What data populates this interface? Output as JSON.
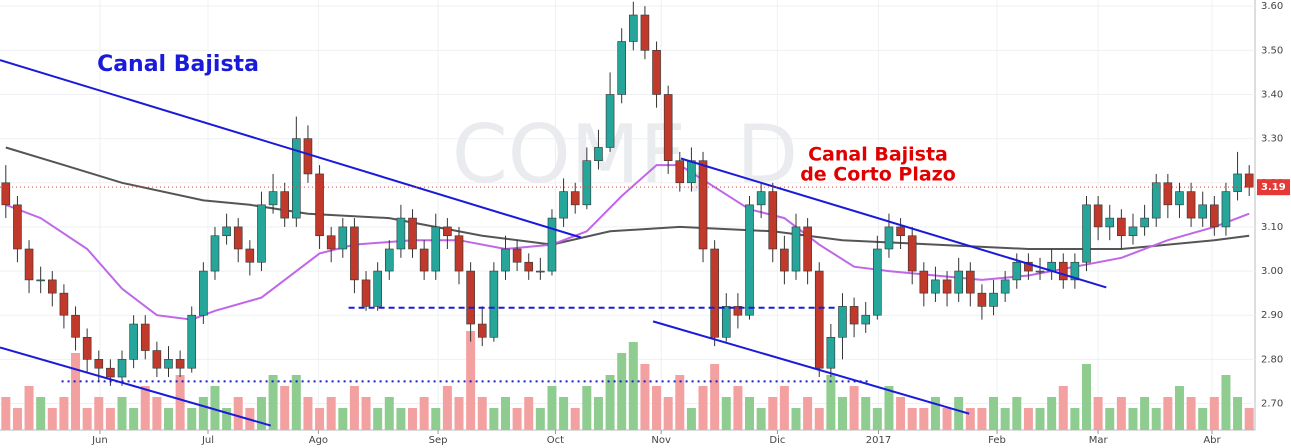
{
  "chart_data": {
    "type": "candlestick",
    "watermark": "COMF, D",
    "ylim": [
      2.64,
      3.614
    ],
    "xlim": [
      -0.5,
      107.5
    ],
    "yticks": [
      {
        "value": 2.7,
        "label": "2.70"
      },
      {
        "value": 2.8,
        "label": "2.80"
      },
      {
        "value": 2.9,
        "label": "2.90"
      },
      {
        "value": 3.0,
        "label": "3.00"
      },
      {
        "value": 3.1,
        "label": "3.10"
      },
      {
        "value": 3.2,
        "label": "3.20"
      },
      {
        "value": 3.3,
        "label": "3.30"
      },
      {
        "value": 3.4,
        "label": "3.40"
      },
      {
        "value": 3.5,
        "label": "3.50"
      },
      {
        "value": 3.6,
        "label": "3.60"
      }
    ],
    "xticks": [
      {
        "value": 8.1,
        "label": "Jun"
      },
      {
        "value": 17.4,
        "label": "Jul"
      },
      {
        "value": 26.9,
        "label": "Ago"
      },
      {
        "value": 37.2,
        "label": "Sep"
      },
      {
        "value": 47.3,
        "label": "Oct"
      },
      {
        "value": 56.4,
        "label": "Nov"
      },
      {
        "value": 66.4,
        "label": "Dic"
      },
      {
        "value": 75.1,
        "label": "2017"
      },
      {
        "value": 85.3,
        "label": "Feb"
      },
      {
        "value": 94.0,
        "label": "Mar"
      },
      {
        "value": 103.8,
        "label": "Abr"
      }
    ],
    "grid": true,
    "up_color": "#26a69a",
    "down_color": "#c0392b",
    "up_volume_color": "#8fcc8f",
    "down_volume_color": "#f2a0a0",
    "open": [
      3.2,
      3.15,
      3.05,
      2.98,
      2.98,
      2.95,
      2.9,
      2.85,
      2.8,
      2.78,
      2.76,
      2.8,
      2.88,
      2.82,
      2.78,
      2.8,
      2.78,
      2.9,
      3.0,
      3.08,
      3.1,
      3.05,
      3.02,
      3.15,
      3.18,
      3.12,
      3.3,
      3.22,
      3.08,
      3.05,
      3.1,
      2.98,
      2.92,
      3.0,
      3.05,
      3.12,
      3.05,
      3.0,
      3.1,
      3.08,
      3.0,
      2.88,
      2.85,
      3.0,
      3.05,
      3.02,
      3.0,
      3.0,
      3.12,
      3.18,
      3.15,
      3.25,
      3.28,
      3.4,
      3.52,
      3.58,
      3.5,
      3.4,
      3.25,
      3.2,
      3.25,
      3.05,
      2.85,
      2.92,
      2.9,
      3.15,
      3.18,
      3.05,
      3.0,
      3.1,
      3.0,
      2.78,
      2.85,
      2.92,
      2.88,
      2.9,
      3.05,
      3.1,
      3.08,
      3.0,
      2.95,
      2.98,
      2.95,
      3.0,
      2.95,
      2.92,
      2.95,
      2.98,
      3.02,
      3.0,
      3.0,
      3.02,
      2.98,
      3.02,
      3.15,
      3.1,
      3.12,
      3.08,
      3.1,
      3.12,
      3.2,
      3.15,
      3.18,
      3.12,
      3.15,
      3.1,
      3.18,
      3.22
    ],
    "high": [
      3.24,
      3.17,
      3.07,
      3.01,
      3.0,
      2.97,
      2.92,
      2.87,
      2.82,
      2.8,
      2.82,
      2.9,
      2.9,
      2.84,
      2.83,
      2.82,
      2.92,
      3.02,
      3.1,
      3.13,
      3.12,
      3.07,
      3.18,
      3.22,
      3.2,
      3.35,
      3.33,
      3.24,
      3.1,
      3.12,
      3.12,
      3.0,
      3.02,
      3.07,
      3.15,
      3.14,
      3.07,
      3.13,
      3.12,
      3.1,
      3.02,
      2.92,
      3.02,
      3.08,
      3.07,
      3.04,
      3.03,
      3.14,
      3.21,
      3.2,
      3.28,
      3.32,
      3.45,
      3.55,
      3.61,
      3.6,
      3.52,
      3.42,
      3.27,
      3.28,
      3.27,
      3.07,
      2.95,
      2.95,
      3.17,
      3.2,
      3.2,
      3.08,
      3.13,
      3.12,
      3.02,
      2.88,
      2.95,
      2.94,
      2.93,
      3.08,
      3.13,
      3.12,
      3.1,
      3.02,
      3.01,
      3.0,
      3.03,
      3.02,
      2.97,
      2.98,
      3.0,
      3.04,
      3.04,
      3.03,
      3.05,
      3.04,
      3.04,
      3.17,
      3.17,
      3.15,
      3.14,
      3.13,
      3.15,
      3.22,
      3.22,
      3.2,
      3.2,
      3.18,
      3.17,
      3.2,
      3.27,
      3.24
    ],
    "low": [
      3.12,
      3.02,
      2.95,
      2.95,
      2.92,
      2.87,
      2.82,
      2.77,
      2.75,
      2.74,
      2.74,
      2.78,
      2.8,
      2.76,
      2.76,
      2.76,
      2.77,
      2.88,
      2.98,
      3.06,
      3.02,
      2.99,
      3.0,
      3.13,
      3.1,
      3.1,
      3.2,
      3.05,
      3.02,
      3.03,
      2.95,
      2.91,
      2.91,
      2.98,
      3.03,
      3.03,
      2.98,
      2.98,
      3.05,
      2.97,
      2.84,
      2.83,
      2.84,
      2.98,
      3.0,
      2.98,
      2.98,
      2.99,
      3.1,
      3.13,
      3.14,
      3.23,
      3.27,
      3.38,
      3.5,
      3.48,
      3.37,
      3.22,
      3.18,
      3.18,
      3.02,
      2.83,
      2.84,
      2.87,
      2.89,
      3.12,
      3.02,
      2.97,
      2.98,
      2.97,
      2.76,
      2.76,
      2.8,
      2.85,
      2.86,
      2.89,
      3.03,
      3.05,
      2.97,
      2.92,
      2.93,
      2.92,
      2.93,
      2.92,
      2.89,
      2.9,
      2.93,
      2.96,
      2.98,
      2.98,
      2.98,
      2.96,
      2.96,
      3.0,
      3.07,
      3.07,
      3.05,
      3.06,
      3.08,
      3.1,
      3.12,
      3.12,
      3.1,
      3.1,
      3.08,
      3.08,
      3.16,
      3.17
    ],
    "close": [
      3.15,
      3.05,
      2.98,
      2.98,
      2.95,
      2.9,
      2.85,
      2.8,
      2.78,
      2.76,
      2.8,
      2.88,
      2.82,
      2.78,
      2.8,
      2.78,
      2.9,
      3.0,
      3.08,
      3.1,
      3.05,
      3.02,
      3.15,
      3.18,
      3.12,
      3.3,
      3.22,
      3.08,
      3.05,
      3.1,
      2.98,
      2.92,
      3.0,
      3.05,
      3.12,
      3.05,
      3.0,
      3.1,
      3.08,
      3.0,
      2.88,
      2.85,
      3.0,
      3.05,
      3.02,
      3.0,
      3.0,
      3.12,
      3.18,
      3.15,
      3.25,
      3.28,
      3.4,
      3.52,
      3.58,
      3.5,
      3.4,
      3.25,
      3.2,
      3.25,
      3.05,
      2.85,
      2.92,
      2.9,
      3.15,
      3.18,
      3.05,
      3.0,
      3.1,
      3.0,
      2.78,
      2.85,
      2.92,
      2.88,
      2.9,
      3.05,
      3.1,
      3.08,
      3.0,
      2.95,
      2.98,
      2.95,
      3.0,
      2.95,
      2.92,
      2.95,
      2.98,
      3.02,
      3.0,
      3.0,
      3.02,
      2.98,
      3.02,
      3.15,
      3.1,
      3.12,
      3.08,
      3.1,
      3.12,
      3.2,
      3.15,
      3.18,
      3.12,
      3.15,
      3.1,
      3.18,
      3.22,
      3.19
    ],
    "volume": [
      3,
      2,
      4,
      3,
      2,
      3,
      7,
      2,
      3,
      2,
      3,
      2,
      4,
      3,
      2,
      5,
      2,
      3,
      4,
      2,
      3,
      2,
      3,
      5,
      4,
      5,
      3,
      2,
      3,
      2,
      4,
      3,
      2,
      3,
      2,
      2,
      3,
      2,
      4,
      3,
      9,
      3,
      2,
      3,
      2,
      3,
      2,
      4,
      3,
      2,
      4,
      3,
      5,
      7,
      8,
      6,
      4,
      3,
      5,
      2,
      4,
      6,
      3,
      4,
      3,
      2,
      3,
      4,
      2,
      3,
      2,
      5,
      3,
      4,
      3,
      2,
      4,
      3,
      2,
      2,
      3,
      2,
      3,
      2,
      2,
      3,
      2,
      3,
      2,
      2,
      3,
      4,
      2,
      6,
      3,
      2,
      3,
      2,
      3,
      2,
      3,
      4,
      3,
      2,
      3,
      5,
      3,
      2
    ],
    "volume_lim": [
      0,
      10
    ],
    "moving_averages": [
      {
        "color": "#555555",
        "x": [
          0,
          5,
          10,
          17,
          21,
          26,
          33,
          41,
          47,
          52,
          58,
          66,
          72,
          80,
          88,
          96,
          104,
          107
        ],
        "values": [
          3.28,
          3.24,
          3.2,
          3.16,
          3.15,
          3.13,
          3.12,
          3.08,
          3.06,
          3.09,
          3.1,
          3.09,
          3.07,
          3.06,
          3.05,
          3.05,
          3.07,
          3.08
        ]
      },
      {
        "color": "#c066e8",
        "x": [
          0,
          3,
          7,
          10,
          13,
          16,
          18,
          22,
          24,
          27,
          30,
          35,
          39,
          43,
          47,
          50,
          53,
          56,
          58,
          61,
          64,
          67,
          70,
          73,
          76,
          80,
          84,
          88,
          92,
          96,
          100,
          104,
          107
        ],
        "values": [
          3.15,
          3.12,
          3.05,
          2.96,
          2.9,
          2.89,
          2.91,
          2.94,
          2.98,
          3.04,
          3.06,
          3.07,
          3.07,
          3.05,
          3.06,
          3.09,
          3.17,
          3.24,
          3.24,
          3.19,
          3.14,
          3.12,
          3.06,
          3.01,
          3.0,
          2.99,
          2.98,
          2.99,
          3.01,
          3.03,
          3.07,
          3.1,
          3.13
        ]
      }
    ],
    "trendlines": [
      {
        "style": "solid",
        "x": [
          -0.5,
          49.5
        ],
        "values": [
          3.478,
          3.076
        ]
      },
      {
        "style": "solid",
        "x": [
          -0.5,
          22.8
        ],
        "values": [
          2.827,
          2.65
        ]
      },
      {
        "style": "solid",
        "x": [
          58.1,
          94.7
        ],
        "values": [
          3.255,
          2.963
        ]
      },
      {
        "style": "solid",
        "x": [
          55.7,
          82.9
        ],
        "values": [
          2.886,
          2.677
        ]
      },
      {
        "style": "dashed",
        "x": [
          29.5,
          71.5
        ],
        "values": [
          2.917,
          2.917
        ]
      },
      {
        "style": "dotted",
        "x": [
          4.8,
          74.5
        ],
        "values": [
          2.75,
          2.75
        ]
      }
    ],
    "trendline_color": "#1a1adb",
    "annotations": [
      {
        "text": "Canal Bajista",
        "color": "#1a1adb"
      },
      {
        "text": "Canal Bajista",
        "color": "#e00000"
      },
      {
        "text": "de Corto Plazo",
        "color": "#e00000"
      }
    ],
    "last_price": 3.19,
    "last_price_color": "#e53935"
  }
}
